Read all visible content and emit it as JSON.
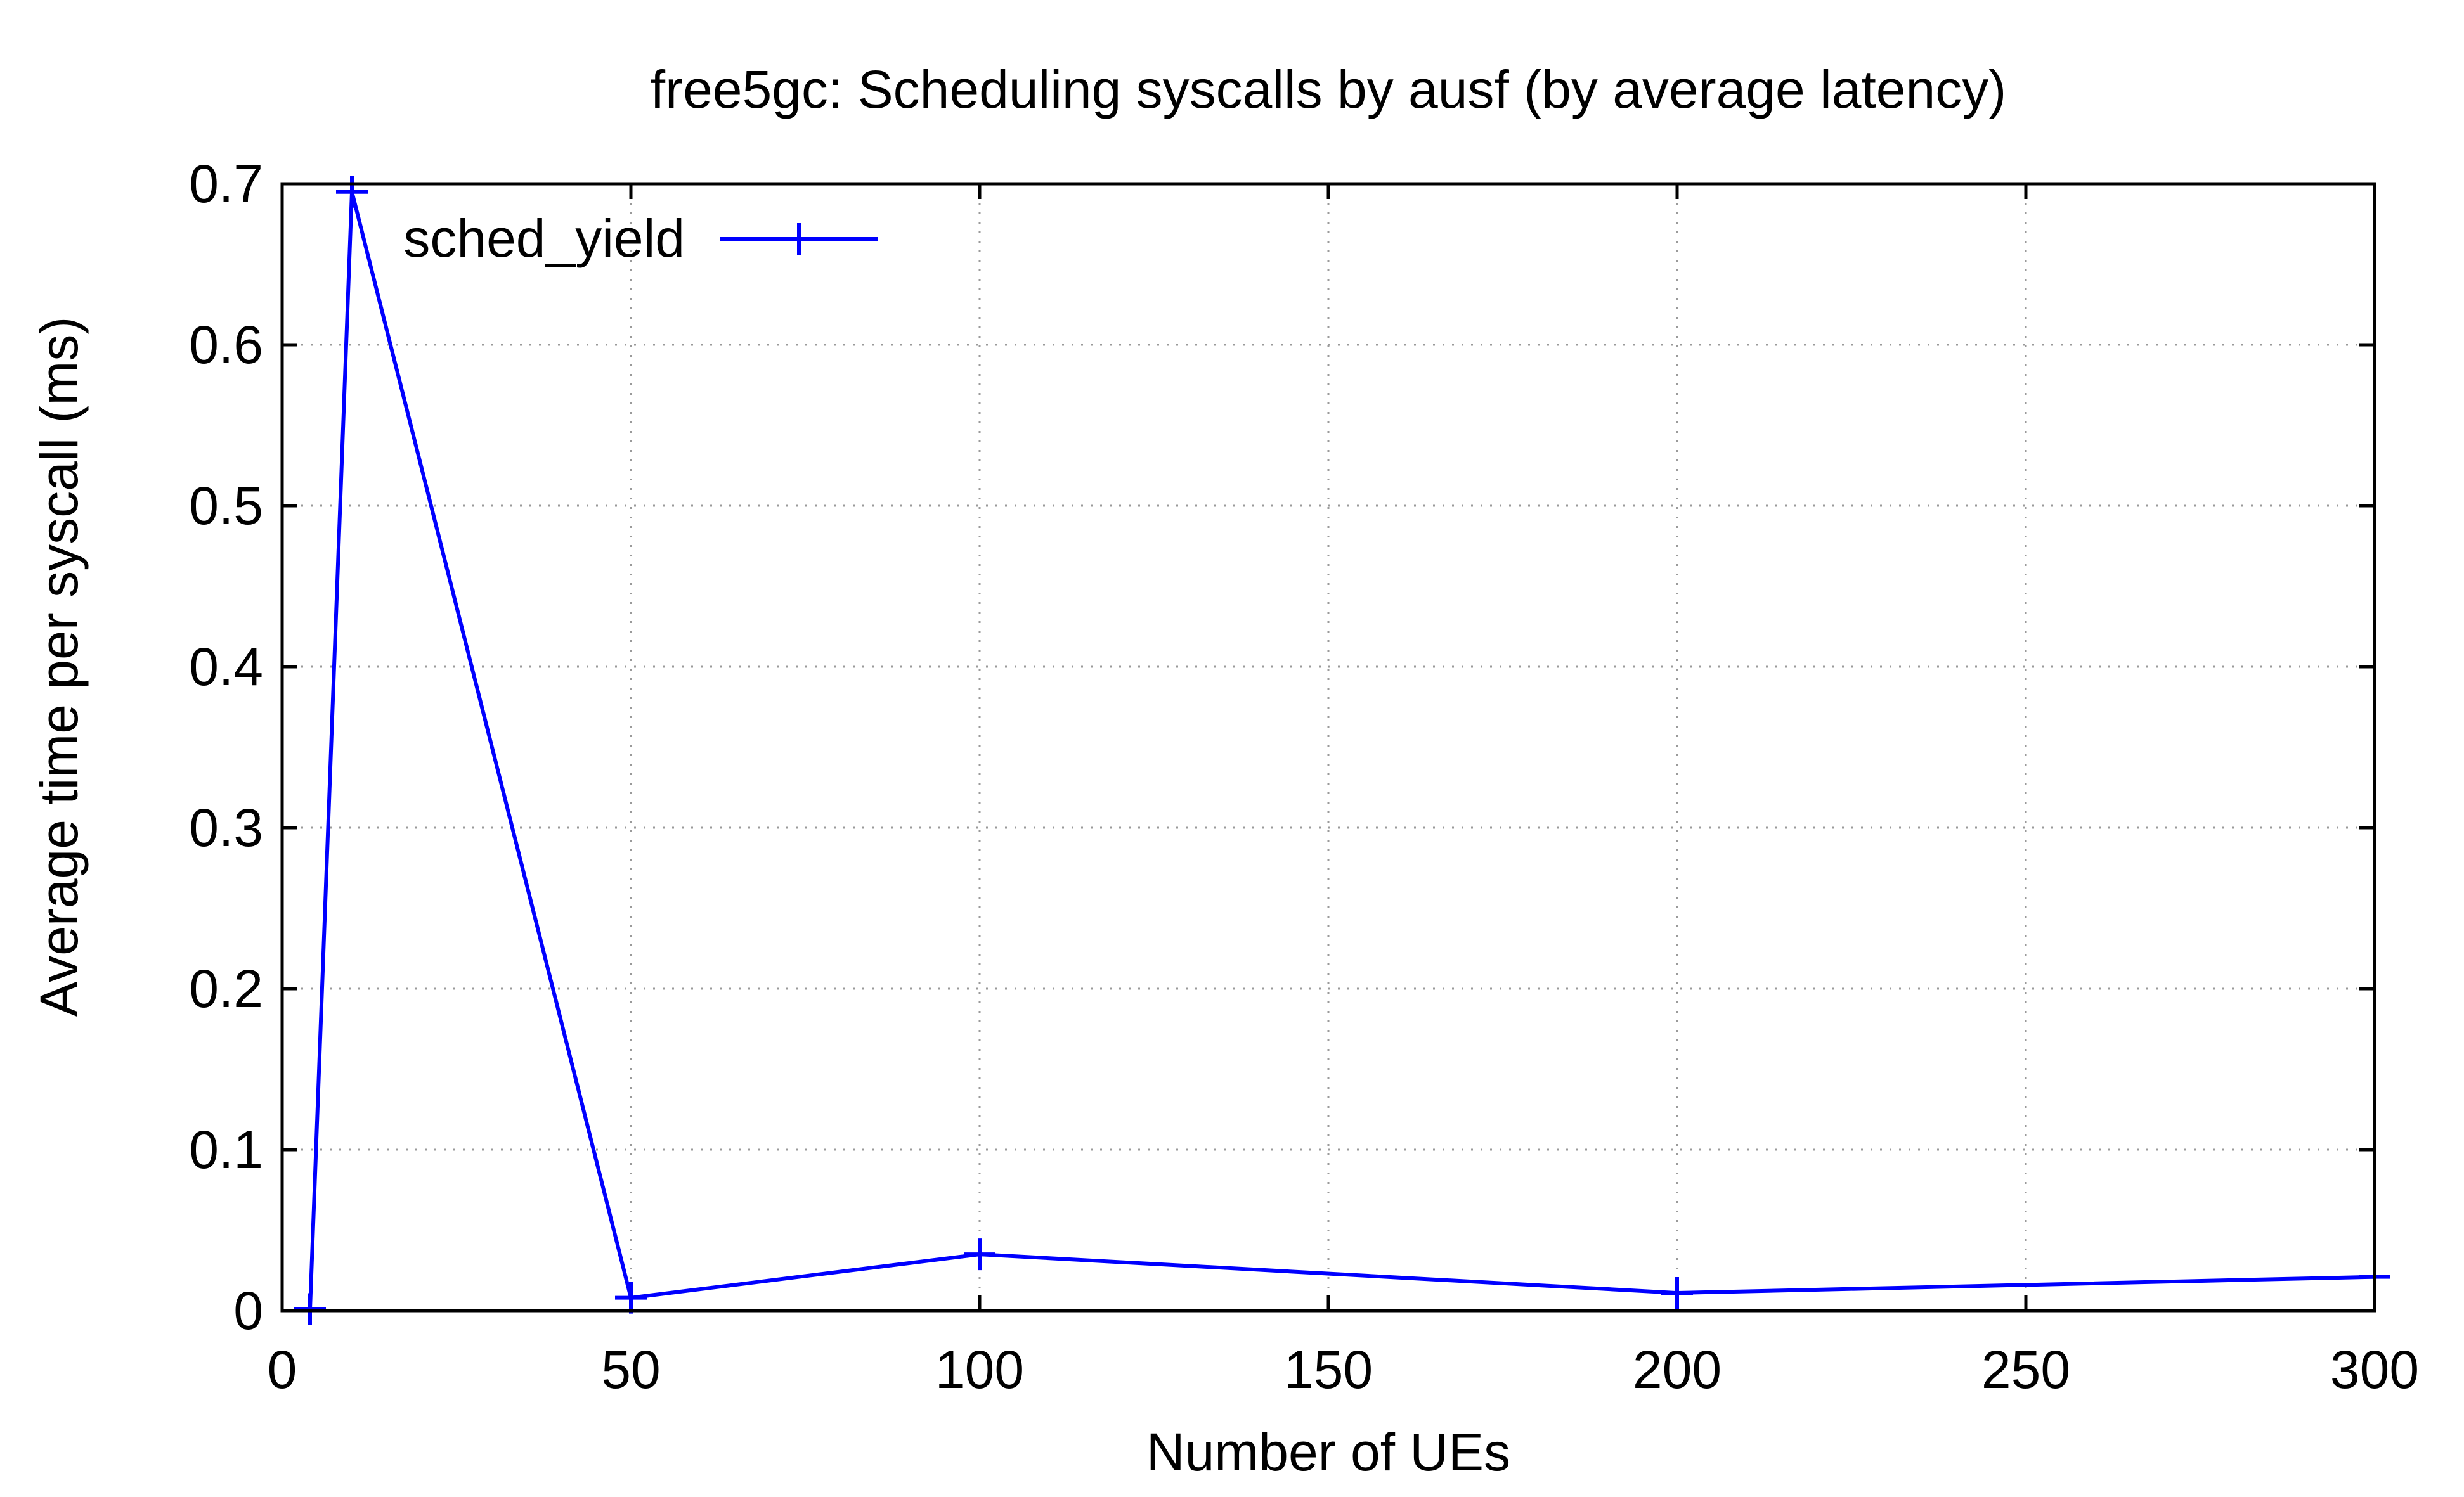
{
  "chart_data": {
    "type": "line",
    "title": "free5gc: Scheduling syscalls by ausf (by average latency)",
    "xlabel": "Number of UEs",
    "ylabel": "Average time per syscall (ms)",
    "xlim": [
      0,
      300
    ],
    "ylim": [
      0,
      0.7
    ],
    "x_ticks": [
      0,
      50,
      100,
      150,
      200,
      250,
      300
    ],
    "y_ticks": [
      0,
      0.1,
      0.2,
      0.3,
      0.4,
      0.5,
      0.6,
      0.7
    ],
    "x_tick_labels": [
      "0",
      "50",
      "100",
      "150",
      "200",
      "250",
      "300"
    ],
    "y_tick_labels": [
      "0",
      "0.1",
      "0.2",
      "0.3",
      "0.4",
      "0.5",
      "0.6",
      "0.7"
    ],
    "grid": true,
    "legend_position": "top-left",
    "series": [
      {
        "name": "sched_yield",
        "color": "#0000ff",
        "marker": "plus",
        "points": [
          {
            "x": 4,
            "y": 0.001
          },
          {
            "x": 10,
            "y": 0.695
          },
          {
            "x": 50,
            "y": 0.008
          },
          {
            "x": 100,
            "y": 0.035
          },
          {
            "x": 200,
            "y": 0.011
          },
          {
            "x": 300,
            "y": 0.021
          }
        ]
      }
    ]
  }
}
